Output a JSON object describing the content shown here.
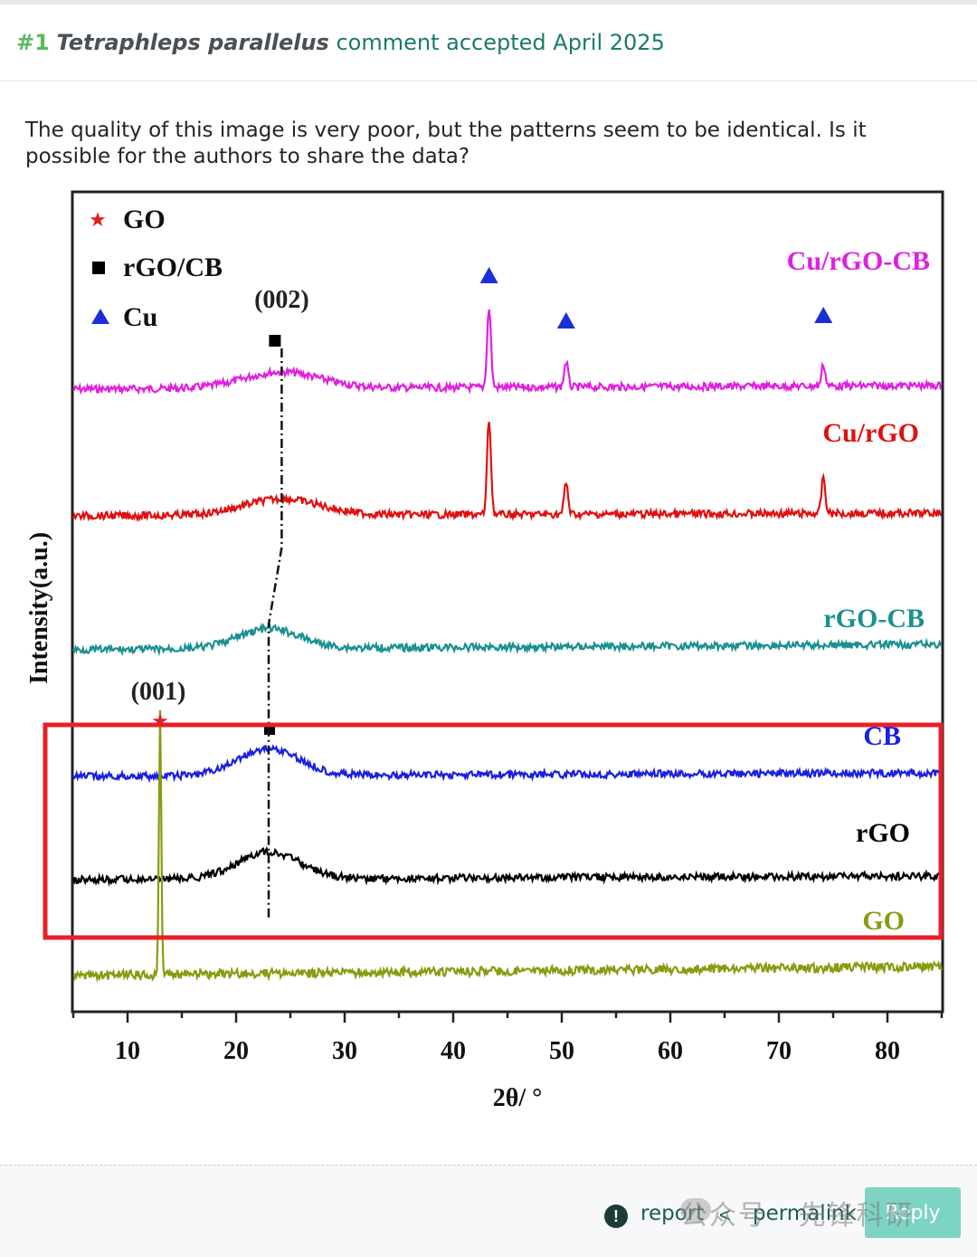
{
  "header": {
    "number": "#1",
    "species": "Tetraphleps parallelus",
    "status": "comment accepted April 2025"
  },
  "comment": {
    "text": "The quality of this image is very poor, but the patterns seem to be identical. Is it possible for the authors to share the data?"
  },
  "footer": {
    "report_label": "report",
    "permalink_label": "permalink",
    "reply_label": "Reply",
    "watermark": "公众号 · 先锋科研",
    "icons": {
      "report": "exclamation-circle-icon",
      "permalink": "share-icon"
    }
  },
  "chart_data": {
    "type": "line",
    "title": "",
    "xlabel": "2θ/ °",
    "ylabel": "Intensity(a.u.)",
    "xlim": [
      5,
      85
    ],
    "xticks": [
      10,
      20,
      30,
      40,
      50,
      60,
      70,
      80
    ],
    "legend": {
      "placement": "top-left",
      "entries": [
        {
          "marker": "star",
          "label": "GO",
          "color": "#e02020"
        },
        {
          "marker": "square",
          "label": "rGO/CB",
          "color": "#000000"
        },
        {
          "marker": "triangle",
          "label": "Cu",
          "color": "#1a2fd6"
        }
      ]
    },
    "annotations": [
      {
        "text": "(002)",
        "x": 24.2
      },
      {
        "text": "(001)",
        "x": 13.0
      }
    ],
    "series": [
      {
        "name": "Cu/rGO-CB",
        "color": "#e020e0",
        "peaks": [
          24.2,
          43.3,
          50.4,
          74.1
        ]
      },
      {
        "name": "Cu/rGO",
        "color": "#e01010",
        "peaks": [
          24.2,
          43.3,
          50.4,
          74.1
        ]
      },
      {
        "name": "rGO-CB",
        "color": "#1a9090",
        "peaks": [
          23.0
        ]
      },
      {
        "name": "CB",
        "color": "#1a20e0",
        "peaks": [
          23.0
        ]
      },
      {
        "name": "rGO",
        "color": "#000000",
        "peaks": [
          23.0
        ]
      },
      {
        "name": "GO",
        "color": "#8a9a10",
        "peaks": [
          13.0
        ]
      }
    ]
  }
}
